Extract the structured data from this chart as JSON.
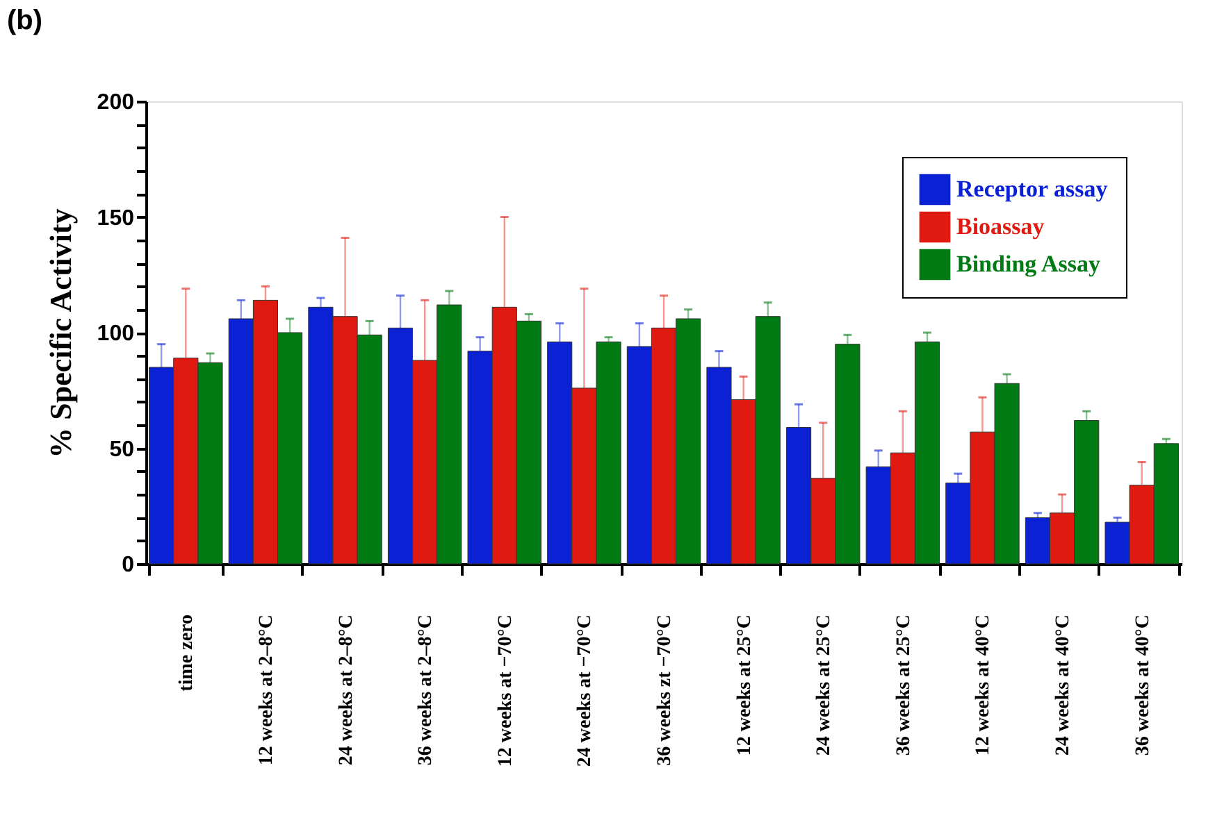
{
  "chart_data": {
    "type": "bar",
    "title": "(b)",
    "ylabel": "% Specific Activity",
    "categories": [
      "time zero",
      "12 weeks at 2–8°C",
      "24 weeks at 2–8°C",
      "36 weeks at 2–8°C",
      "12 weeks at −70°C",
      "24 weeks at −70°C",
      "36 weeks zt −70°C",
      "12 weeks at 25°C",
      "24 weeks at 25°C",
      "36 weeks at 25°C",
      "12 weeks at 40°C",
      "24 weeks at 40°C",
      "36 weeks at 40°C"
    ],
    "series": [
      {
        "name": "Receptor assay",
        "color": "#0a22d4",
        "values": [
          85,
          106,
          111,
          102,
          92,
          96,
          94,
          85,
          59,
          42,
          35,
          20,
          18
        ],
        "errors": [
          [
            85,
            95
          ],
          [
            106,
            114
          ],
          [
            111,
            115
          ],
          [
            102,
            116
          ],
          [
            92,
            98
          ],
          [
            96,
            104
          ],
          [
            94,
            104
          ],
          [
            85,
            92
          ],
          [
            59,
            69
          ],
          [
            42,
            49
          ],
          [
            35,
            39
          ],
          [
            20,
            22
          ],
          [
            18,
            20
          ]
        ]
      },
      {
        "name": "Bioassay",
        "color": "#e01a10",
        "values": [
          89,
          114,
          107,
          88,
          111,
          76,
          102,
          71,
          37,
          48,
          57,
          22,
          34
        ],
        "errors": [
          [
            89,
            119
          ],
          [
            114,
            120
          ],
          [
            107,
            141
          ],
          [
            88,
            114
          ],
          [
            111,
            150
          ],
          [
            76,
            119
          ],
          [
            102,
            116
          ],
          [
            71,
            81
          ],
          [
            37,
            61
          ],
          [
            48,
            66
          ],
          [
            57,
            72
          ],
          [
            22,
            30
          ],
          [
            34,
            44
          ]
        ]
      },
      {
        "name": "Binding Assay",
        "color": "#007a12",
        "values": [
          87,
          100,
          99,
          112,
          105,
          96,
          106,
          107,
          95,
          96,
          78,
          62,
          52
        ],
        "errors": [
          [
            87,
            91
          ],
          [
            100,
            106
          ],
          [
            99,
            105
          ],
          [
            112,
            118
          ],
          [
            105,
            108
          ],
          [
            96,
            98
          ],
          [
            106,
            110
          ],
          [
            107,
            113
          ],
          [
            95,
            99
          ],
          [
            96,
            100
          ],
          [
            78,
            82
          ],
          [
            62,
            66
          ],
          [
            52,
            54
          ]
        ]
      }
    ],
    "ylim": [
      0,
      200
    ],
    "yticks": [
      0,
      {
        "value": 10,
        "label": null
      },
      {
        "value": 20,
        "label": null
      },
      {
        "value": 30,
        "label": null
      },
      {
        "value": 40,
        "label": null
      },
      50,
      {
        "value": 60,
        "label": null
      },
      {
        "value": 70,
        "label": null
      },
      {
        "value": 80,
        "label": null
      },
      {
        "value": 90,
        "label": null
      },
      100,
      {
        "value": 110,
        "label": null
      },
      {
        "value": 120,
        "label": null
      },
      {
        "value": 130,
        "label": null
      },
      {
        "value": 140,
        "label": null
      },
      150,
      {
        "value": 160,
        "label": null
      },
      {
        "value": 170,
        "label": null
      },
      {
        "value": 180,
        "label": null
      },
      {
        "value": 190,
        "label": null
      },
      200
    ],
    "grid": false,
    "legend": "top right"
  }
}
